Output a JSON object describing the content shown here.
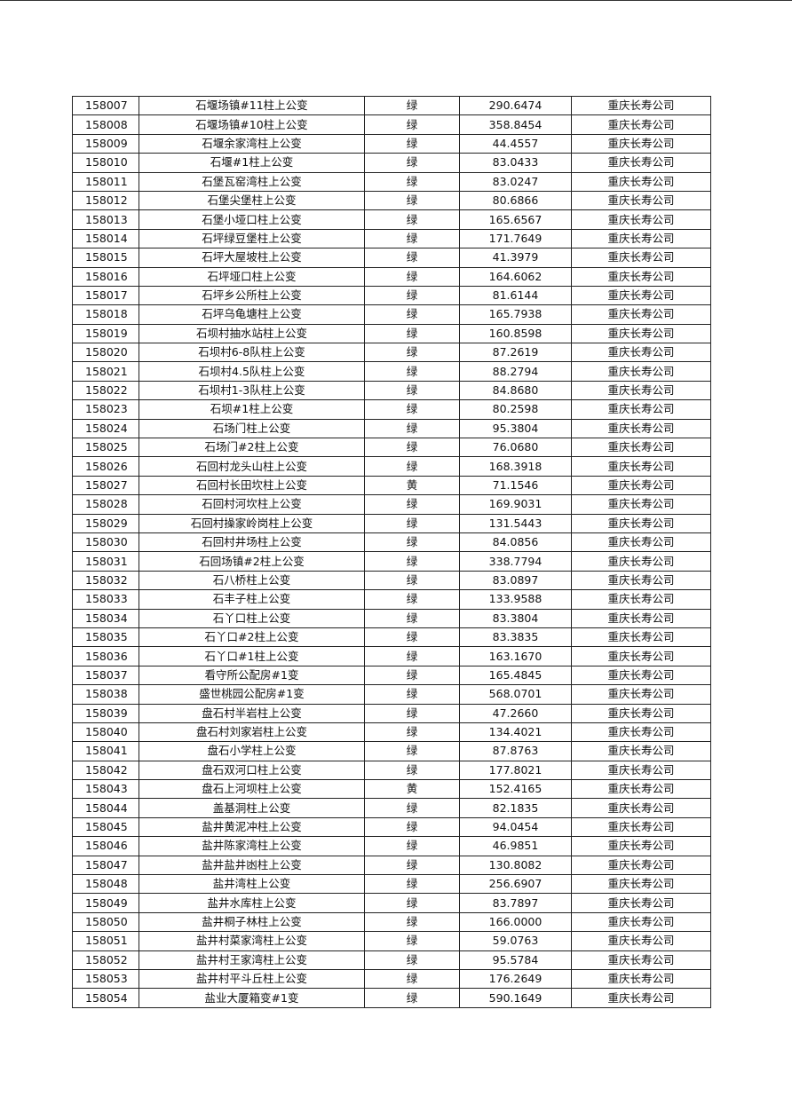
{
  "table": {
    "rows": [
      [
        "158007",
        "石堰场镇#11柱上公变",
        "绿",
        "290.6474",
        "重庆长寿公司"
      ],
      [
        "158008",
        "石堰场镇#10柱上公变",
        "绿",
        "358.8454",
        "重庆长寿公司"
      ],
      [
        "158009",
        "石堰余家湾柱上公变",
        "绿",
        "44.4557",
        "重庆长寿公司"
      ],
      [
        "158010",
        "石堰#1柱上公变",
        "绿",
        "83.0433",
        "重庆长寿公司"
      ],
      [
        "158011",
        "石堡瓦窑湾柱上公变",
        "绿",
        "83.0247",
        "重庆长寿公司"
      ],
      [
        "158012",
        "石堡尖堡柱上公变",
        "绿",
        "80.6866",
        "重庆长寿公司"
      ],
      [
        "158013",
        "石堡小垭口柱上公变",
        "绿",
        "165.6567",
        "重庆长寿公司"
      ],
      [
        "158014",
        "石坪绿豆堡柱上公变",
        "绿",
        "171.7649",
        "重庆长寿公司"
      ],
      [
        "158015",
        "石坪大屋坡柱上公变",
        "绿",
        "41.3979",
        "重庆长寿公司"
      ],
      [
        "158016",
        "石坪垭口柱上公变",
        "绿",
        "164.6062",
        "重庆长寿公司"
      ],
      [
        "158017",
        "石坪乡公所柱上公变",
        "绿",
        "81.6144",
        "重庆长寿公司"
      ],
      [
        "158018",
        "石坪乌龟塘柱上公变",
        "绿",
        "165.7938",
        "重庆长寿公司"
      ],
      [
        "158019",
        "石坝村抽水站柱上公变",
        "绿",
        "160.8598",
        "重庆长寿公司"
      ],
      [
        "158020",
        "石坝村6-8队柱上公变",
        "绿",
        "87.2619",
        "重庆长寿公司"
      ],
      [
        "158021",
        "石坝村4.5队柱上公变",
        "绿",
        "88.2794",
        "重庆长寿公司"
      ],
      [
        "158022",
        "石坝村1-3队柱上公变",
        "绿",
        "84.8680",
        "重庆长寿公司"
      ],
      [
        "158023",
        "石坝#1柱上公变",
        "绿",
        "80.2598",
        "重庆长寿公司"
      ],
      [
        "158024",
        "石场门柱上公变",
        "绿",
        "95.3804",
        "重庆长寿公司"
      ],
      [
        "158025",
        "石场门#2柱上公变",
        "绿",
        "76.0680",
        "重庆长寿公司"
      ],
      [
        "158026",
        "石回村龙头山柱上公变",
        "绿",
        "168.3918",
        "重庆长寿公司"
      ],
      [
        "158027",
        "石回村长田坎柱上公变",
        "黄",
        "71.1546",
        "重庆长寿公司"
      ],
      [
        "158028",
        "石回村河坎柱上公变",
        "绿",
        "169.9031",
        "重庆长寿公司"
      ],
      [
        "158029",
        "石回村操家岭岗柱上公变",
        "绿",
        "131.5443",
        "重庆长寿公司"
      ],
      [
        "158030",
        "石回村井场柱上公变",
        "绿",
        "84.0856",
        "重庆长寿公司"
      ],
      [
        "158031",
        "石回场镇#2柱上公变",
        "绿",
        "338.7794",
        "重庆长寿公司"
      ],
      [
        "158032",
        "石八桥柱上公变",
        "绿",
        "83.0897",
        "重庆长寿公司"
      ],
      [
        "158033",
        "石丰子柱上公变",
        "绿",
        "133.9588",
        "重庆长寿公司"
      ],
      [
        "158034",
        "石丫口柱上公变",
        "绿",
        "83.3804",
        "重庆长寿公司"
      ],
      [
        "158035",
        "石丫口#2柱上公变",
        "绿",
        "83.3835",
        "重庆长寿公司"
      ],
      [
        "158036",
        "石丫口#1柱上公变",
        "绿",
        "163.1670",
        "重庆长寿公司"
      ],
      [
        "158037",
        "看守所公配房#1变",
        "绿",
        "165.4845",
        "重庆长寿公司"
      ],
      [
        "158038",
        "盛世桃园公配房#1变",
        "绿",
        "568.0701",
        "重庆长寿公司"
      ],
      [
        "158039",
        "盘石村半岩柱上公变",
        "绿",
        "47.2660",
        "重庆长寿公司"
      ],
      [
        "158040",
        "盘石村刘家岩柱上公变",
        "绿",
        "134.4021",
        "重庆长寿公司"
      ],
      [
        "158041",
        "盘石小学柱上公变",
        "绿",
        "87.8763",
        "重庆长寿公司"
      ],
      [
        "158042",
        "盘石双河口柱上公变",
        "绿",
        "177.8021",
        "重庆长寿公司"
      ],
      [
        "158043",
        "盘石上河坝柱上公变",
        "黄",
        "152.4165",
        "重庆长寿公司"
      ],
      [
        "158044",
        "盖基洞柱上公变",
        "绿",
        "82.1835",
        "重庆长寿公司"
      ],
      [
        "158045",
        "盐井黄泥冲柱上公变",
        "绿",
        "94.0454",
        "重庆长寿公司"
      ],
      [
        "158046",
        "盐井陈家湾柱上公变",
        "绿",
        "46.9851",
        "重庆长寿公司"
      ],
      [
        "158047",
        "盐井盐井凼柱上公变",
        "绿",
        "130.8082",
        "重庆长寿公司"
      ],
      [
        "158048",
        "盐井湾柱上公变",
        "绿",
        "256.6907",
        "重庆长寿公司"
      ],
      [
        "158049",
        "盐井水库柱上公变",
        "绿",
        "83.7897",
        "重庆长寿公司"
      ],
      [
        "158050",
        "盐井桐子林柱上公变",
        "绿",
        "166.0000",
        "重庆长寿公司"
      ],
      [
        "158051",
        "盐井村菜家湾柱上公变",
        "绿",
        "59.0763",
        "重庆长寿公司"
      ],
      [
        "158052",
        "盐井村王家湾柱上公变",
        "绿",
        "95.5784",
        "重庆长寿公司"
      ],
      [
        "158053",
        "盐井村平斗丘柱上公变",
        "绿",
        "176.2649",
        "重庆长寿公司"
      ],
      [
        "158054",
        "盐业大厦箱变#1变",
        "绿",
        "590.1649",
        "重庆长寿公司"
      ]
    ]
  }
}
